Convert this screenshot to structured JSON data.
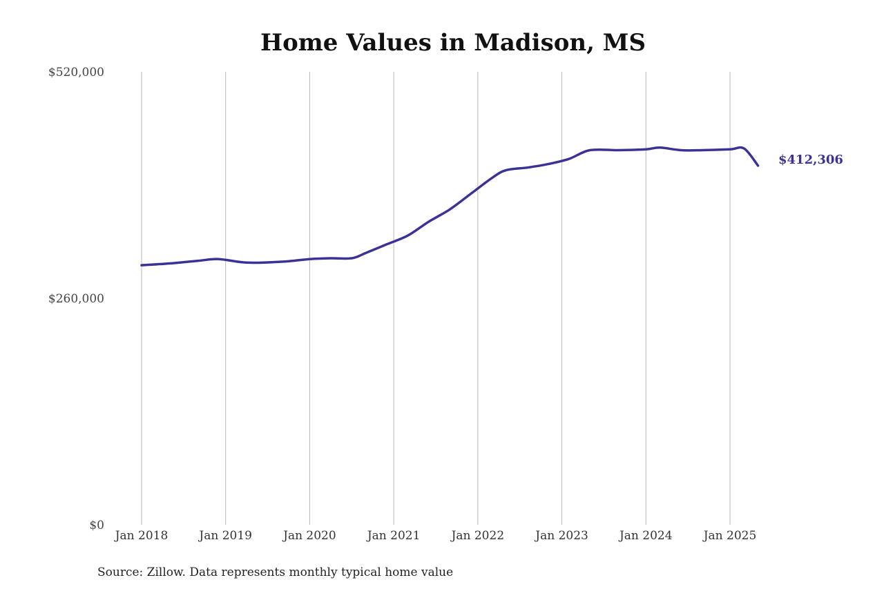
{
  "chart_data": {
    "type": "line",
    "title": "Home Values in Madison, MS",
    "source": "Source: Zillow. Data represents monthly typical home value",
    "ylim": [
      0,
      520000
    ],
    "y_ticks": [
      {
        "value": 0,
        "label": "$0"
      },
      {
        "value": 260000,
        "label": "$260,000"
      },
      {
        "value": 520000,
        "label": "$520,000"
      }
    ],
    "x_ticks": [
      {
        "value": "2018-01",
        "label": "Jan 2018"
      },
      {
        "value": "2019-01",
        "label": "Jan 2019"
      },
      {
        "value": "2020-01",
        "label": "Jan 2020"
      },
      {
        "value": "2021-01",
        "label": "Jan 2021"
      },
      {
        "value": "2022-01",
        "label": "Jan 2022"
      },
      {
        "value": "2023-01",
        "label": "Jan 2023"
      },
      {
        "value": "2024-01",
        "label": "Jan 2024"
      },
      {
        "value": "2025-01",
        "label": "Jan 2025"
      }
    ],
    "grid": "vertical",
    "line_color": "#3a3296",
    "end_label": "$412,306",
    "series": [
      {
        "x": [
          "2018-01",
          "2018-05",
          "2018-09",
          "2018-12",
          "2019-04",
          "2019-09",
          "2020-01",
          "2020-04",
          "2020-07",
          "2020-09",
          "2020-12",
          "2021-03",
          "2021-06",
          "2021-09",
          "2021-12",
          "2022-03",
          "2022-05",
          "2022-08",
          "2022-11",
          "2023-02",
          "2023-05",
          "2023-09",
          "2024-01",
          "2024-03",
          "2024-06",
          "2024-09",
          "2025-01",
          "2025-03",
          "2025-05"
        ],
        "values": [
          298000,
          300000,
          303000,
          305000,
          301000,
          302000,
          305000,
          306000,
          306000,
          312000,
          322000,
          332000,
          348000,
          362000,
          380000,
          398000,
          407000,
          410000,
          414000,
          420000,
          430000,
          430000,
          431000,
          433000,
          430000,
          430000,
          431000,
          432000,
          412306
        ]
      }
    ]
  }
}
